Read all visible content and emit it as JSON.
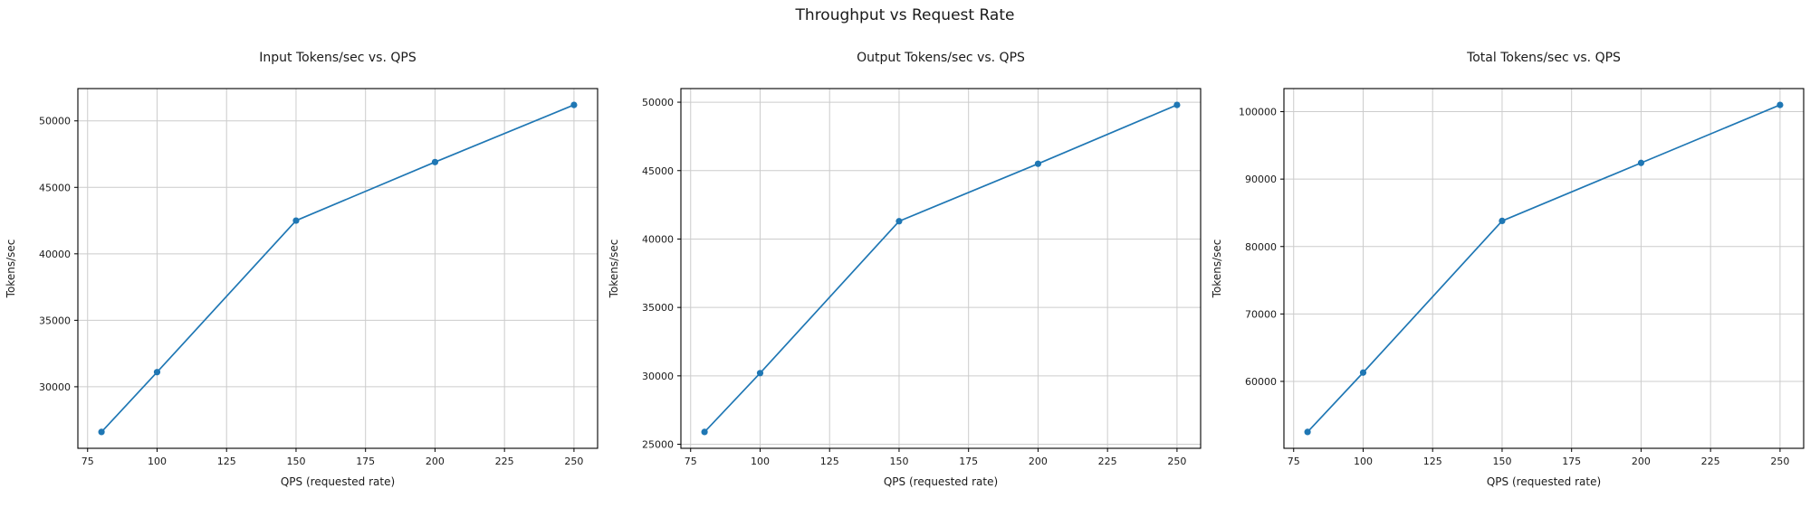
{
  "figure": {
    "title": "Throughput vs Request Rate"
  },
  "chart_data": [
    {
      "type": "line",
      "title": "Input Tokens/sec vs. QPS",
      "xlabel": "QPS (requested rate)",
      "ylabel": "Tokens/sec",
      "x": [
        80,
        100,
        150,
        200,
        250
      ],
      "y": [
        26600,
        31100,
        42500,
        46900,
        51200
      ],
      "xlim": [
        71.5,
        258.5
      ],
      "ylim": [
        25370,
        52430
      ],
      "xticks": [
        75,
        100,
        125,
        150,
        175,
        200,
        225,
        250
      ],
      "yticks": [
        30000,
        35000,
        40000,
        45000,
        50000
      ],
      "line_color": "#1f77b4",
      "grid": true,
      "grid_color": "#cccccc",
      "legend_position": "none"
    },
    {
      "type": "line",
      "title": "Output Tokens/sec vs. QPS",
      "xlabel": "QPS (requested rate)",
      "ylabel": "Tokens/sec",
      "x": [
        80,
        100,
        150,
        200,
        250
      ],
      "y": [
        25900,
        30200,
        41300,
        45500,
        49800
      ],
      "xlim": [
        71.5,
        258.5
      ],
      "ylim": [
        24705,
        50995
      ],
      "xticks": [
        75,
        100,
        125,
        150,
        175,
        200,
        225,
        250
      ],
      "yticks": [
        25000,
        30000,
        35000,
        40000,
        45000,
        50000
      ],
      "line_color": "#1f77b4",
      "grid": true,
      "grid_color": "#cccccc",
      "legend_position": "none"
    },
    {
      "type": "line",
      "title": "Total Tokens/sec vs. QPS",
      "xlabel": "QPS (requested rate)",
      "ylabel": "Tokens/sec",
      "x": [
        80,
        100,
        150,
        200,
        250
      ],
      "y": [
        52500,
        61300,
        83800,
        92400,
        101000
      ],
      "xlim": [
        71.5,
        258.5
      ],
      "ylim": [
        50075,
        103425
      ],
      "xticks": [
        75,
        100,
        125,
        150,
        175,
        200,
        225,
        250
      ],
      "yticks": [
        60000,
        70000,
        80000,
        90000,
        100000
      ],
      "line_color": "#1f77b4",
      "grid": true,
      "grid_color": "#cccccc",
      "legend_position": "none"
    }
  ]
}
